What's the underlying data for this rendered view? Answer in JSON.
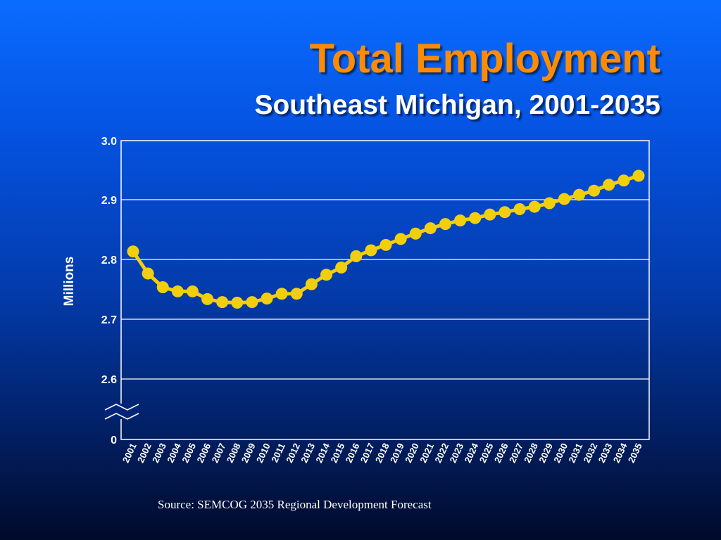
{
  "header": {
    "title": "Total Employment",
    "subtitle": "Southeast Michigan, 2001-2035"
  },
  "footer": {
    "source": "Source: SEMCOG 2035 Regional Development Forecast"
  },
  "colors": {
    "title": "#ff8c00",
    "series": "#f2cf0d",
    "gridline": "#ffffff",
    "text": "#ffffff"
  },
  "chart_data": {
    "type": "line",
    "title": "Total Employment",
    "subtitle": "Southeast Michigan, 2001-2035",
    "ylabel": "Millions",
    "xlabel": "",
    "y_axis_break": true,
    "y_break_between": [
      "0",
      "2.6"
    ],
    "ylim": [
      2.6,
      3.0
    ],
    "y_ticks": [
      "3.0",
      "2.9",
      "2.8",
      "2.7",
      "2.6",
      "0"
    ],
    "grid": true,
    "categories": [
      "2001",
      "2002",
      "2003",
      "2004",
      "2005",
      "2006",
      "2007",
      "2008",
      "2009",
      "2010",
      "2011",
      "2012",
      "2013",
      "2014",
      "2015",
      "2016",
      "2017",
      "2018",
      "2019",
      "2020",
      "2021",
      "2022",
      "2023",
      "2024",
      "2025",
      "2026",
      "2027",
      "2028",
      "2029",
      "2030",
      "2031",
      "2032",
      "2033",
      "2034",
      "2035"
    ],
    "series": [
      {
        "values": [
          2.814,
          2.777,
          2.754,
          2.747,
          2.747,
          2.734,
          2.729,
          2.728,
          2.729,
          2.735,
          2.743,
          2.743,
          2.759,
          2.775,
          2.787,
          2.806,
          2.816,
          2.825,
          2.835,
          2.844,
          2.853,
          2.86,
          2.866,
          2.87,
          2.876,
          2.88,
          2.885,
          2.889,
          2.895,
          2.902,
          2.909,
          2.916,
          2.926,
          2.933,
          2.941
        ]
      }
    ],
    "source": "Source: SEMCOG 2035 Regional Development Forecast"
  }
}
